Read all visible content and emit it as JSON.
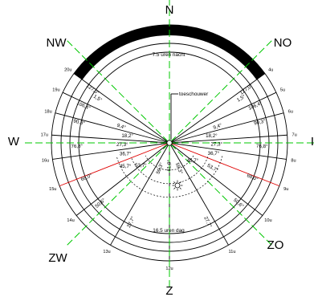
{
  "compass": {
    "north": "N",
    "south": "Z",
    "west": "W",
    "east": "I",
    "northwest": "NW",
    "northeast": "NO",
    "southwest": "ZW",
    "southeast": "ZO"
  },
  "night_label": "7.5 uren nacht",
  "day_label": "16.5 uren dag",
  "observer_label": "toeschouwer",
  "hours": [
    {
      "label": "4u",
      "az": 54.0
    },
    {
      "label": "5u",
      "az": 64.7
    },
    {
      "label": "6u",
      "az": 75.3
    },
    {
      "label": "7u",
      "az": 86.2
    },
    {
      "label": "8u",
      "az": 98.0
    },
    {
      "label": "9u",
      "az": 111.4
    },
    {
      "label": "10u",
      "az": 128.0
    },
    {
      "label": "11u",
      "az": 150.0
    },
    {
      "label": "12u",
      "az": 180.0
    },
    {
      "label": "13u",
      "az": 210.0
    },
    {
      "label": "14u",
      "az": 232.0
    },
    {
      "label": "15u",
      "az": 248.6
    },
    {
      "label": "16u",
      "az": 262.0
    },
    {
      "label": "17u",
      "az": 273.8
    },
    {
      "label": "18u",
      "az": 284.7
    },
    {
      "label": "19u",
      "az": 295.3
    },
    {
      "label": "20u",
      "az": 306.0
    }
  ],
  "angles": [
    {
      "label": "1,5°",
      "az": 58.0,
      "r": 0.86,
      "rot": true
    },
    {
      "label": "127,0°",
      "az": 55.0,
      "r": 0.96,
      "rot": true
    },
    {
      "label": "106,4°",
      "az": 66.5,
      "r": 0.96,
      "rot": true
    },
    {
      "label": "9,4°",
      "az": 71.0,
      "r": 0.56,
      "rot": true
    },
    {
      "label": "18,2°",
      "az": 80.5,
      "r": 0.47,
      "rot": false
    },
    {
      "label": "90,3°",
      "az": 77.0,
      "r": 0.95,
      "rot": true
    },
    {
      "label": "27,3°",
      "az": 91.5,
      "r": 0.52,
      "rot": false
    },
    {
      "label": "76,8°",
      "az": 92.0,
      "r": 0.95,
      "rot": true
    },
    {
      "label": "36,7°",
      "az": 103.5,
      "r": 0.5,
      "rot": false
    },
    {
      "label": "53,7°",
      "az": 120.0,
      "r": 0.55,
      "rot": true
    },
    {
      "label": "68,0°",
      "az": 112.5,
      "r": 0.92,
      "rot": true
    },
    {
      "label": "45,7°",
      "az": 127.0,
      "r": 0.32,
      "rot": false
    },
    {
      "label": "50,6°",
      "az": 131.0,
      "r": 0.94,
      "rot": true
    },
    {
      "label": "59,3°",
      "az": 159.0,
      "r": 0.3,
      "rot": true
    },
    {
      "label": "27,7°",
      "az": 154.0,
      "r": 0.9,
      "rot": true
    },
    {
      "label": "61,9°",
      "az": 181.0,
      "r": 0.25,
      "rot": true
    },
    {
      "label": "59,3°",
      "az": 201.0,
      "r": 0.3,
      "rot": true
    },
    {
      "label": "53,7°",
      "az": 232.0,
      "r": 0.4,
      "rot": false
    },
    {
      "label": "45,7°",
      "az": 242.0,
      "r": 0.55,
      "rot": false
    },
    {
      "label": "36,7°",
      "az": 256.0,
      "r": 0.5,
      "rot": false
    },
    {
      "label": "27,3°",
      "az": 268.0,
      "r": 0.52,
      "rot": false
    },
    {
      "label": "18,2°",
      "az": 279.5,
      "r": 0.47,
      "rot": false
    },
    {
      "label": "9,4°",
      "az": 289.0,
      "r": 0.56,
      "rot": true
    },
    {
      "label": "1,5°",
      "az": 302.0,
      "r": 0.86,
      "rot": true
    },
    {
      "label": "127,0°",
      "az": 305.0,
      "r": 0.96,
      "rot": true
    },
    {
      "label": "106,4°",
      "az": 293.5,
      "r": 0.96,
      "rot": true
    },
    {
      "label": "90,3°",
      "az": 283.0,
      "r": 0.95,
      "rot": true
    },
    {
      "label": "76,8°",
      "az": 268.0,
      "r": 0.95,
      "rot": true
    },
    {
      "label": "68,0°",
      "az": 247.5,
      "r": 0.92,
      "rot": true
    },
    {
      "label": "50,6°",
      "az": 229.0,
      "r": 0.94,
      "rot": true
    },
    {
      "label": "27,7°",
      "az": 206.0,
      "r": 0.9,
      "rot": true
    }
  ],
  "colors": {
    "ink": "#000000",
    "green": "#00c800",
    "red": "#e00000",
    "background": "#ffffff"
  }
}
